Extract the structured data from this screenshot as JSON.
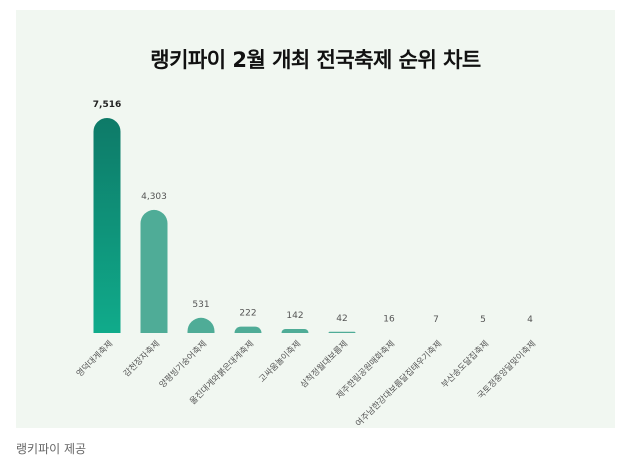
{
  "chart_data": {
    "type": "bar",
    "title": "랭키파이 2월 개최 전국축제 순위 차트",
    "categories": [
      "영덕대게축제",
      "감천장자축제",
      "양평빙기숭어축제",
      "울진대게와붉은대게축제",
      "고싸움놀이축제",
      "삼척정월대보름제",
      "제주한림공원매화축제",
      "여주남한강대보름달집태우기축제",
      "부산송도달집축제",
      "국토정중앙달맞이축제"
    ],
    "values": [
      7516,
      4303,
      531,
      222,
      142,
      42,
      16,
      7,
      5,
      4
    ],
    "value_labels": [
      "7,516",
      "4,303",
      "531",
      "222",
      "142",
      "42",
      "16",
      "7",
      "5",
      "4"
    ],
    "ylim": [
      0,
      7516
    ],
    "grid": false,
    "colors": {
      "top_bar_start": "#0e7a68",
      "top_bar_end": "#10ae8d",
      "bar": "#4fac97",
      "background": "#f1f7f1"
    }
  },
  "caption": "랭키파이 제공"
}
